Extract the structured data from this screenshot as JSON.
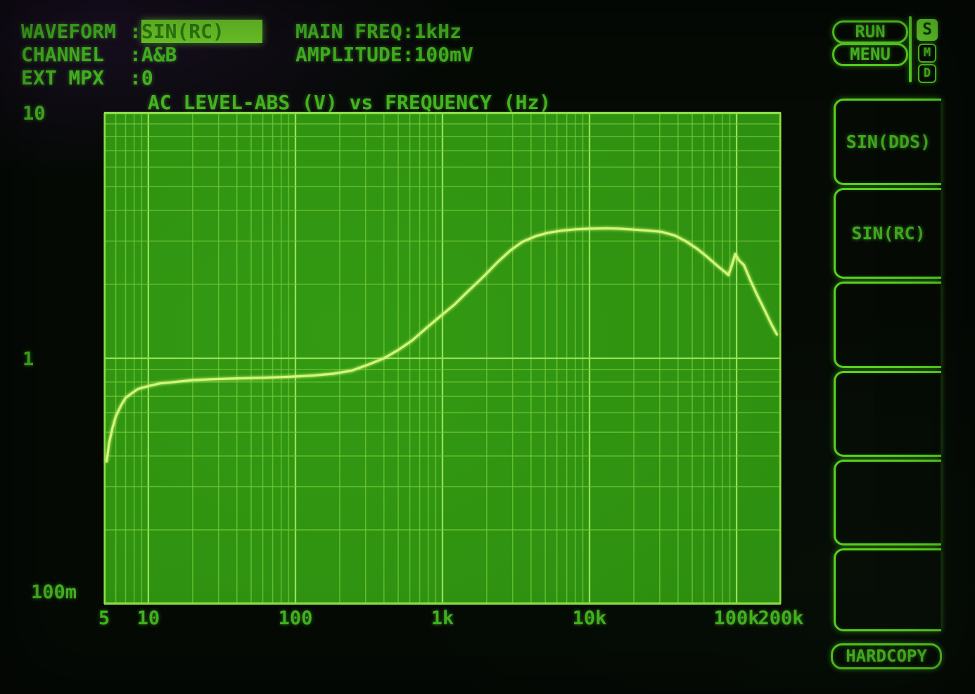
{
  "header": {
    "rows": [
      {
        "label": "WAVEFORM",
        "sep": ":",
        "value": "SIN(RC)",
        "highlighted": true
      },
      {
        "label": "CHANNEL",
        "sep": ":",
        "value": "A&B",
        "highlighted": false
      },
      {
        "label": "EXT MPX",
        "sep": ":",
        "value": "0",
        "highlighted": false
      }
    ],
    "right": [
      {
        "label": "MAIN FREQ",
        "sep": ":",
        "value": "1kHz"
      },
      {
        "label": "AMPLITUDE",
        "sep": ":",
        "value": "100mV"
      }
    ]
  },
  "chart_data": {
    "type": "line",
    "title": "AC LEVEL-ABS (V) vs FREQUENCY (Hz)",
    "xlabel": "FREQUENCY (Hz)",
    "ylabel": "AC LEVEL-ABS (V)",
    "x_scale": "log",
    "y_scale": "log",
    "x_range": [
      5,
      200000
    ],
    "y_range": [
      0.1,
      10
    ],
    "grid": true,
    "x_ticks": [
      {
        "label": "5",
        "value": 5
      },
      {
        "label": "10",
        "value": 10
      },
      {
        "label": "100",
        "value": 100
      },
      {
        "label": "1k",
        "value": 1000
      },
      {
        "label": "10k",
        "value": 10000
      },
      {
        "label": "100k",
        "value": 100000
      },
      {
        "label": "200k",
        "value": 200000
      }
    ],
    "y_ticks": [
      {
        "label": "10",
        "value": 10
      },
      {
        "label": "1",
        "value": 1
      },
      {
        "label": "100m",
        "value": 0.1
      }
    ],
    "series": [
      {
        "points": [
          [
            5.2,
            0.38
          ],
          [
            5.4,
            0.45
          ],
          [
            5.7,
            0.52
          ],
          [
            6.0,
            0.58
          ],
          [
            6.5,
            0.64
          ],
          [
            7.0,
            0.69
          ],
          [
            7.7,
            0.72
          ],
          [
            8.5,
            0.75
          ],
          [
            10,
            0.77
          ],
          [
            12,
            0.79
          ],
          [
            15,
            0.8
          ],
          [
            20,
            0.815
          ],
          [
            28,
            0.822
          ],
          [
            40,
            0.828
          ],
          [
            60,
            0.833
          ],
          [
            90,
            0.84
          ],
          [
            130,
            0.85
          ],
          [
            180,
            0.865
          ],
          [
            240,
            0.89
          ],
          [
            310,
            0.94
          ],
          [
            400,
            1.0
          ],
          [
            500,
            1.08
          ],
          [
            620,
            1.18
          ],
          [
            780,
            1.33
          ],
          [
            950,
            1.47
          ],
          [
            1200,
            1.65
          ],
          [
            1500,
            1.88
          ],
          [
            1900,
            2.15
          ],
          [
            2400,
            2.48
          ],
          [
            2900,
            2.75
          ],
          [
            3500,
            2.98
          ],
          [
            4300,
            3.14
          ],
          [
            5200,
            3.24
          ],
          [
            6500,
            3.31
          ],
          [
            8000,
            3.35
          ],
          [
            10000,
            3.37
          ],
          [
            13000,
            3.38
          ],
          [
            16000,
            3.37
          ],
          [
            20000,
            3.34
          ],
          [
            25000,
            3.31
          ],
          [
            31000,
            3.27
          ],
          [
            38000,
            3.16
          ],
          [
            45000,
            3.0
          ],
          [
            54000,
            2.79
          ],
          [
            63000,
            2.59
          ],
          [
            74000,
            2.38
          ],
          [
            83000,
            2.25
          ],
          [
            88000,
            2.18
          ],
          [
            93000,
            2.4
          ],
          [
            98000,
            2.66
          ],
          [
            104000,
            2.5
          ],
          [
            112000,
            2.4
          ],
          [
            124000,
            2.08
          ],
          [
            138000,
            1.81
          ],
          [
            155000,
            1.57
          ],
          [
            172000,
            1.38
          ],
          [
            188000,
            1.25
          ]
        ]
      }
    ]
  },
  "sidebar": {
    "run_label": "RUN",
    "menu_label": "MENU",
    "indicators": [
      {
        "label": "S",
        "active": true
      },
      {
        "label": "M",
        "active": false
      },
      {
        "label": "D",
        "active": false
      }
    ],
    "softkeys": [
      {
        "label": "SIN(DDS)"
      },
      {
        "label": "SIN(RC)"
      },
      {
        "label": ""
      },
      {
        "label": ""
      },
      {
        "label": ""
      },
      {
        "label": ""
      }
    ],
    "hardcopy_label": "HARDCOPY"
  },
  "colors": {
    "plot_fill": "#2e8f10",
    "grid_minor": "#74cc38",
    "grid_major": "#9ae65a",
    "plot_border": "#8ade46",
    "trace": "#d2f776",
    "text_green": "#42b41f",
    "highlight_fill": "#6ecb29"
  }
}
